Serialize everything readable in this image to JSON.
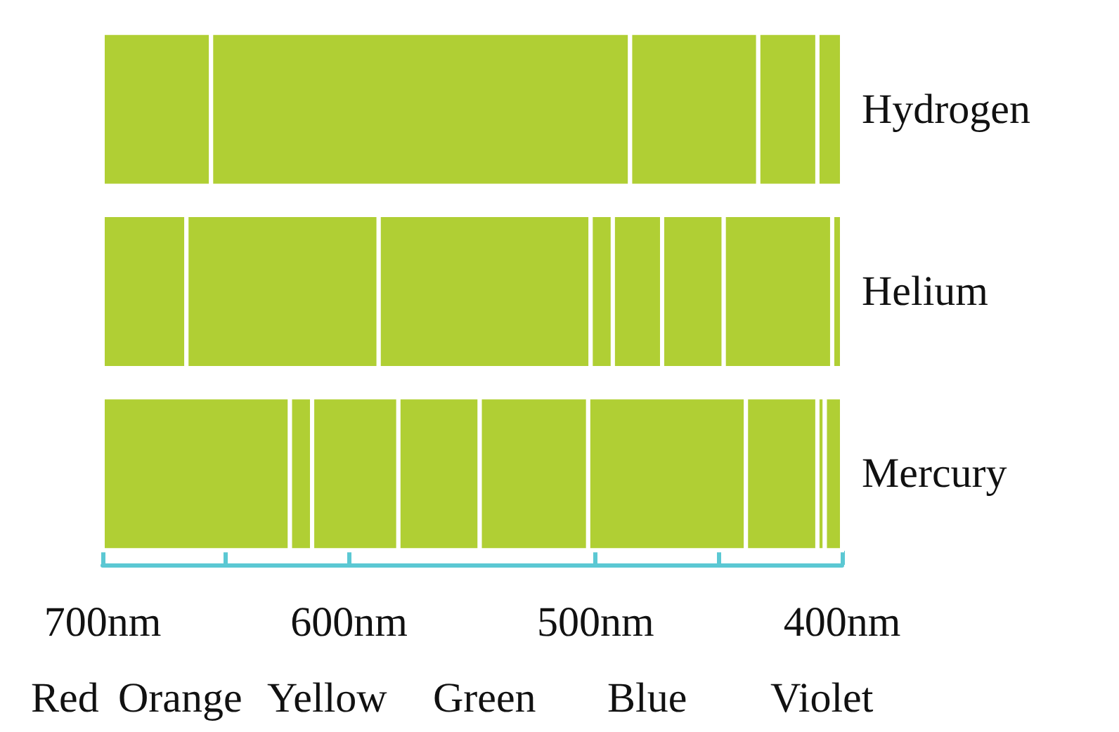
{
  "chart_data": {
    "type": "bar",
    "orientation": "horizontal",
    "categories": [
      "Hydrogen",
      "Helium",
      "Mercury"
    ],
    "series": [
      {
        "color": "#b0cf34",
        "values": [
          44,
          34,
          76
        ],
        "base": [
          656,
          666,
          624
        ]
      },
      {
        "color": "#b0cf34",
        "values": [
          170,
          78,
          9
        ],
        "base": [
          486,
          588,
          615
        ]
      },
      {
        "color": "#b0cf34",
        "values": [
          52,
          86,
          35
        ],
        "base": [
          434,
          502,
          580
        ]
      },
      {
        "color": "#b0cf34",
        "values": [
          24,
          9,
          33
        ],
        "base": [
          410,
          493,
          547
        ]
      },
      {
        "color": "#b0cf34",
        "values": [
          10,
          20,
          44
        ],
        "base": [
          400,
          473,
          503
        ]
      },
      {
        "color": "#b0cf34",
        "values": [
          null,
          25,
          64
        ],
        "base": [
          null,
          448,
          439
        ]
      },
      {
        "color": "#b0cf34",
        "values": [
          null,
          44,
          29
        ],
        "base": [
          null,
          404,
          410
        ]
      },
      {
        "color": "#b0cf34",
        "values": [
          null,
          4,
          3
        ],
        "base": [
          null,
          400,
          407
        ]
      },
      {
        "color": "#b0cf34",
        "values": [
          null,
          null,
          7
        ],
        "base": [
          null,
          null,
          400
        ]
      }
    ],
    "xlim": [
      700,
      400
    ],
    "xticks": [
      {
        "value": 700,
        "label": "700nm"
      },
      {
        "value": 650,
        "label": null
      },
      {
        "value": 600,
        "label": "600nm"
      },
      {
        "value": 500,
        "label": "500nm"
      },
      {
        "value": 450,
        "label": null
      },
      {
        "value": 400,
        "label": "400nm"
      }
    ],
    "annotations": [
      "Red",
      "Orange",
      "Yellow",
      "Green",
      "Blue",
      "Violet"
    ],
    "grid": false
  }
}
